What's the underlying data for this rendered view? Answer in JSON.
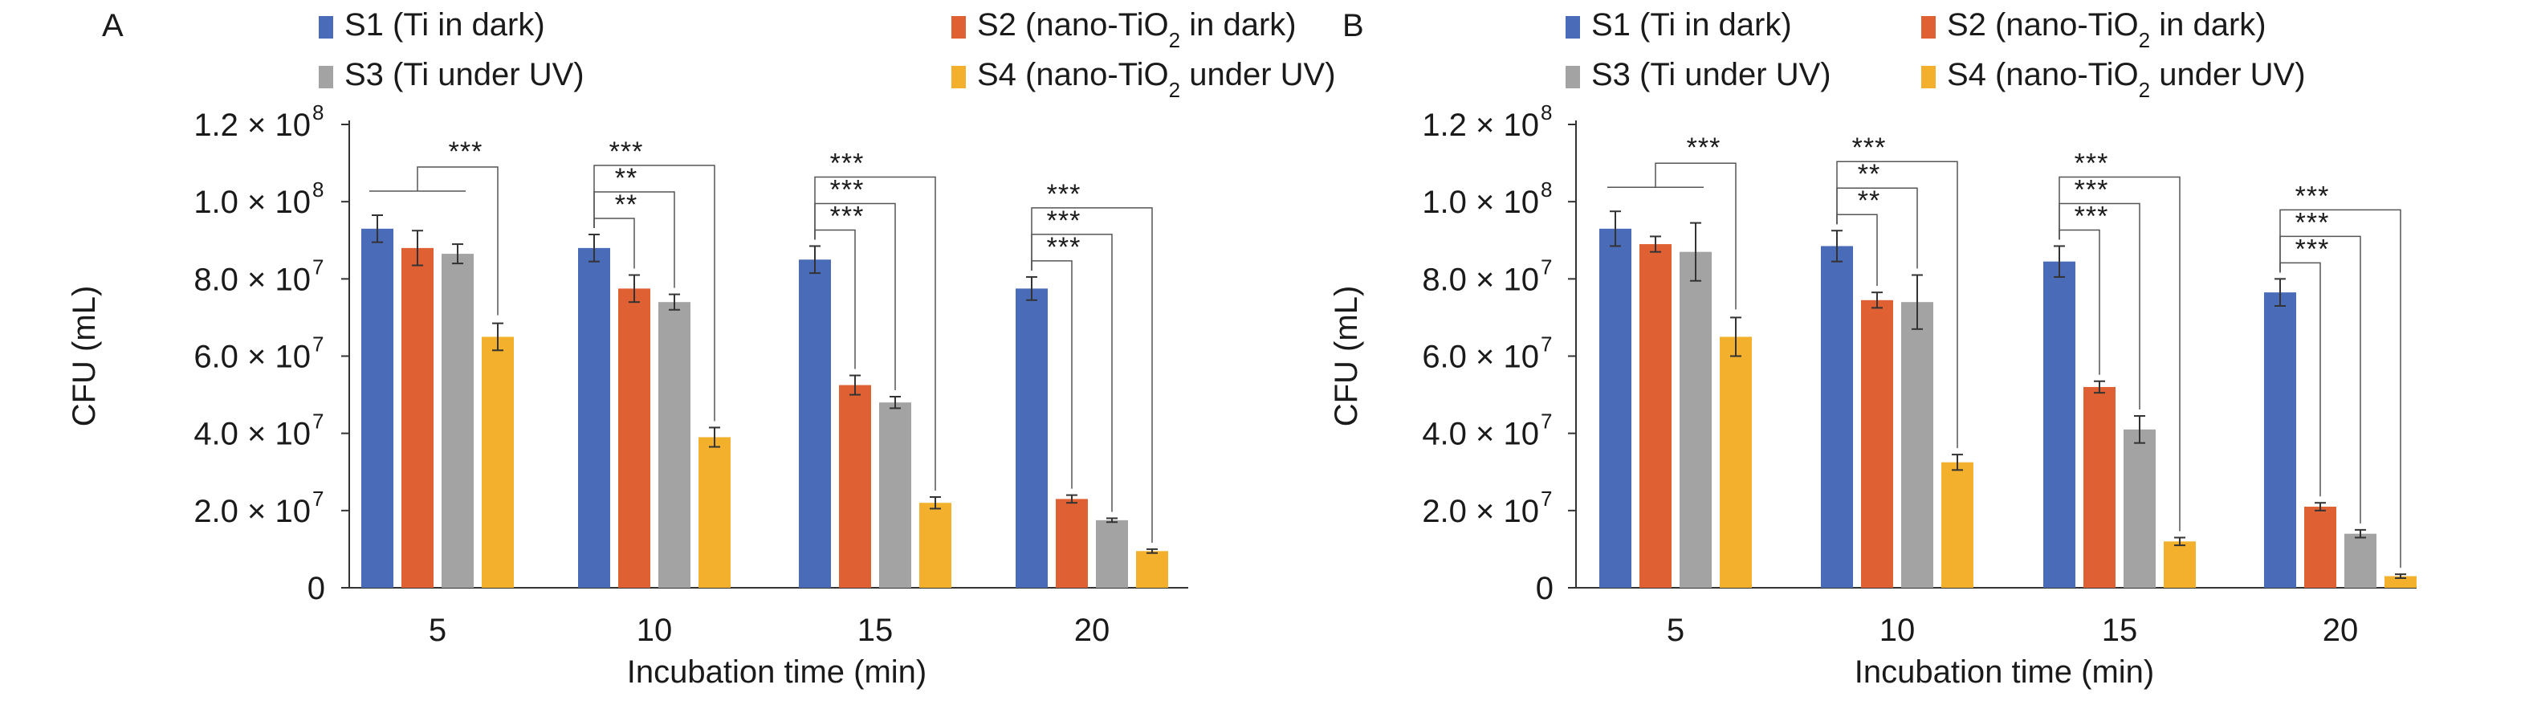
{
  "chart_data": [
    {
      "panel": "A",
      "type": "bar",
      "categories": [
        "5",
        "10",
        "15",
        "20"
      ],
      "xlabel": "Incubation time (min)",
      "ylabel": "CFU (mL)",
      "ylim": [
        0,
        120000000
      ],
      "yticks": [
        {
          "mant": "0",
          "sup": ""
        },
        {
          "mant": "2.0 × 10",
          "sup": "7"
        },
        {
          "mant": "4.0 × 10",
          "sup": "7"
        },
        {
          "mant": "6.0 × 10",
          "sup": "7"
        },
        {
          "mant": "8.0 × 10",
          "sup": "7"
        },
        {
          "mant": "1.0 × 10",
          "sup": "8"
        },
        {
          "mant": "1.2 × 10",
          "sup": "8"
        }
      ],
      "series": [
        {
          "name": "S1 (Ti in dark)",
          "values": [
            93000000,
            88000000,
            85000000,
            77500000
          ],
          "errors": [
            3500000,
            3500000,
            3500000,
            3000000
          ]
        },
        {
          "name": "S2 (nano-TiO2 in dark)",
          "values": [
            88000000,
            77500000,
            52500000,
            23000000
          ],
          "errors": [
            4500000,
            3500000,
            2500000,
            1000000
          ]
        },
        {
          "name": "S3 (Ti under UV)",
          "values": [
            86500000,
            74000000,
            48000000,
            17500000
          ],
          "errors": [
            2500000,
            2000000,
            1500000,
            500000
          ]
        },
        {
          "name": "S4 (nano-TiO2 under UV)",
          "values": [
            65000000,
            39000000,
            22000000,
            9500000
          ],
          "errors": [
            3500000,
            2500000,
            1500000,
            500000
          ]
        }
      ],
      "significance": [
        {
          "group": 0,
          "label": "***",
          "type": "group"
        },
        {
          "group": 1,
          "label": "**",
          "from": 0,
          "to": 1
        },
        {
          "group": 1,
          "label": "**",
          "from": 0,
          "to": 2
        },
        {
          "group": 1,
          "label": "***",
          "from": 0,
          "to": 3
        },
        {
          "group": 2,
          "label": "***",
          "from": 0,
          "to": 1
        },
        {
          "group": 2,
          "label": "***",
          "from": 0,
          "to": 2
        },
        {
          "group": 2,
          "label": "***",
          "from": 0,
          "to": 3
        },
        {
          "group": 3,
          "label": "***",
          "from": 0,
          "to": 1
        },
        {
          "group": 3,
          "label": "***",
          "from": 0,
          "to": 2
        },
        {
          "group": 3,
          "label": "***",
          "from": 0,
          "to": 3
        }
      ]
    },
    {
      "panel": "B",
      "type": "bar",
      "categories": [
        "5",
        "10",
        "15",
        "20"
      ],
      "xlabel": "Incubation time (min)",
      "ylabel": "CFU (mL)",
      "ylim": [
        0,
        120000000
      ],
      "yticks": [
        {
          "mant": "0",
          "sup": ""
        },
        {
          "mant": "2.0 × 10",
          "sup": "7"
        },
        {
          "mant": "4.0 × 10",
          "sup": "7"
        },
        {
          "mant": "6.0 × 10",
          "sup": "7"
        },
        {
          "mant": "8.0 × 10",
          "sup": "7"
        },
        {
          "mant": "1.0 × 10",
          "sup": "8"
        },
        {
          "mant": "1.2 × 10",
          "sup": "8"
        }
      ],
      "series": [
        {
          "name": "S1 (Ti in dark)",
          "values": [
            93000000,
            88500000,
            84500000,
            76500000
          ],
          "errors": [
            4500000,
            4000000,
            4000000,
            3500000
          ]
        },
        {
          "name": "S2 (nano-TiO2 in dark)",
          "values": [
            89000000,
            74500000,
            52000000,
            21000000
          ],
          "errors": [
            2000000,
            2000000,
            1500000,
            1000000
          ]
        },
        {
          "name": "S3 (Ti under UV)",
          "values": [
            87000000,
            74000000,
            41000000,
            14000000
          ],
          "errors": [
            7500000,
            7000000,
            3500000,
            1000000
          ]
        },
        {
          "name": "S4 (nano-TiO2 under UV)",
          "values": [
            65000000,
            32500000,
            12000000,
            3000000
          ],
          "errors": [
            5000000,
            2000000,
            1000000,
            500000
          ]
        }
      ],
      "significance": [
        {
          "group": 0,
          "label": "***",
          "type": "group"
        },
        {
          "group": 1,
          "label": "**",
          "from": 0,
          "to": 1
        },
        {
          "group": 1,
          "label": "**",
          "from": 0,
          "to": 2
        },
        {
          "group": 1,
          "label": "***",
          "from": 0,
          "to": 3
        },
        {
          "group": 2,
          "label": "***",
          "from": 0,
          "to": 1
        },
        {
          "group": 2,
          "label": "***",
          "from": 0,
          "to": 2
        },
        {
          "group": 2,
          "label": "***",
          "from": 0,
          "to": 3
        },
        {
          "group": 3,
          "label": "***",
          "from": 0,
          "to": 1
        },
        {
          "group": 3,
          "label": "***",
          "from": 0,
          "to": 2
        },
        {
          "group": 3,
          "label": "***",
          "from": 0,
          "to": 3
        }
      ]
    }
  ],
  "legend": [
    {
      "pre": "S1 (Ti in dark)",
      "sub": "",
      "post": "",
      "color": "#4a6bb8"
    },
    {
      "pre": "S2 (nano-TiO",
      "sub": "2",
      "post": " in dark)",
      "color": "#df6133"
    },
    {
      "pre": "S3 (Ti under UV)",
      "sub": "",
      "post": "",
      "color": "#a3a3a3"
    },
    {
      "pre": "S4 (nano-TiO",
      "sub": "2",
      "post": " under UV)",
      "color": "#f2b02c"
    }
  ],
  "colors": {
    "series": [
      "#4a6bb8",
      "#df6133",
      "#a3a3a3",
      "#f2b02c"
    ],
    "axis": "#333333",
    "bracket": "#555555"
  }
}
